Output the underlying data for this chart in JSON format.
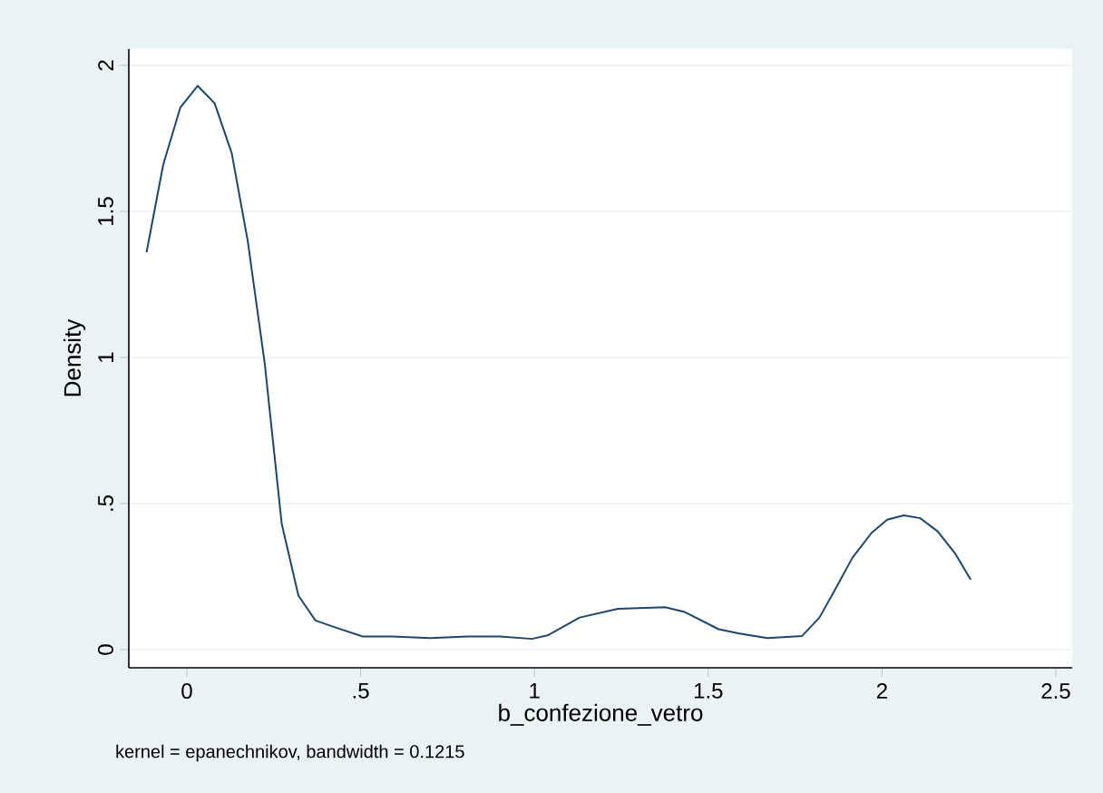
{
  "chart_data": {
    "type": "line",
    "xlabel": "b_confezione_vetro",
    "ylabel": "Density",
    "annotations": [
      "kernel = epanechnikov, bandwidth = 0.1215"
    ],
    "series": [
      {
        "color": "#1a476f",
        "x": [
          -0.116,
          -0.068,
          -0.019,
          0.031,
          0.08,
          0.129,
          0.175,
          0.224,
          0.273,
          0.321,
          0.37,
          0.43,
          0.506,
          0.59,
          0.7,
          0.81,
          0.9,
          0.993,
          1.04,
          1.13,
          1.24,
          1.376,
          1.43,
          1.53,
          1.59,
          1.67,
          1.77,
          1.82,
          1.86,
          1.915,
          1.97,
          2.015,
          2.063,
          2.11,
          2.16,
          2.21,
          2.255
        ],
        "values": [
          1.36,
          1.66,
          1.855,
          1.93,
          1.87,
          1.7,
          1.4,
          0.98,
          0.43,
          0.185,
          0.1,
          0.075,
          0.045,
          0.045,
          0.04,
          0.045,
          0.045,
          0.037,
          0.05,
          0.11,
          0.14,
          0.145,
          0.13,
          0.07,
          0.055,
          0.04,
          0.047,
          0.11,
          0.195,
          0.315,
          0.4,
          0.445,
          0.46,
          0.45,
          0.405,
          0.33,
          0.24
        ]
      }
    ],
    "xlim": [
      -0.167,
      2.547
    ],
    "ylim": [
      -0.062,
      2.056
    ],
    "xticks": [
      0,
      {
        "value": 0.5,
        "label": ".5"
      },
      1,
      1.5,
      2,
      2.5
    ],
    "yticks": [
      0,
      {
        "value": 0.5,
        "label": ".5"
      },
      1,
      1.5,
      2
    ],
    "grid": "y",
    "marker": "none",
    "line_style": "solid"
  }
}
